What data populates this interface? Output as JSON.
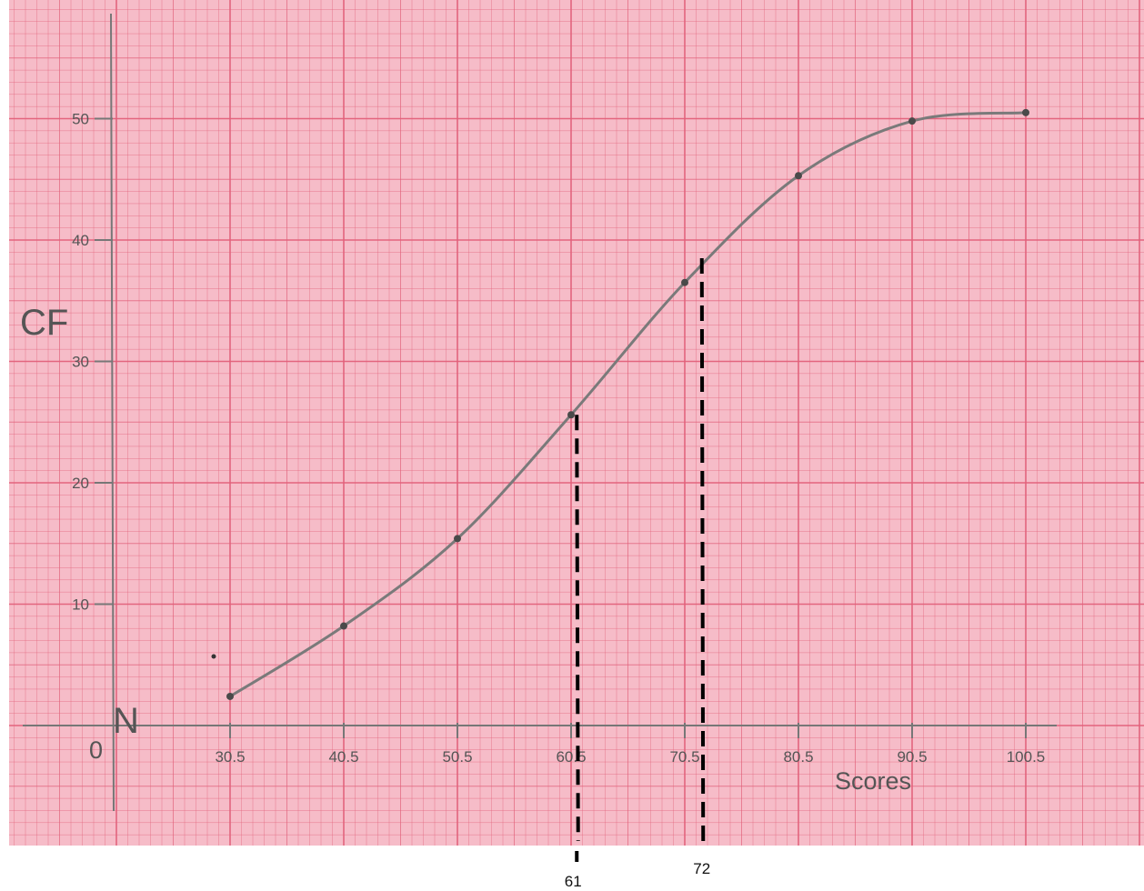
{
  "chart_data": {
    "type": "line",
    "title": "",
    "xlabel": "Scores",
    "ylabel": "CF",
    "origin_label": "0",
    "axis_marker": "N",
    "x_ticks": [
      "30.5",
      "40.5",
      "50.5",
      "60.5",
      "70.5",
      "80.5",
      "90.5",
      "100.5"
    ],
    "y_ticks": [
      "10",
      "20",
      "30",
      "40",
      "50"
    ],
    "xlim": [
      25.5,
      103.5
    ],
    "ylim": [
      -8.5,
      59.5
    ],
    "grid": true,
    "background_color": "#f6bcc8",
    "grid_color": "#e2607a",
    "curve_color": "#7a7a7a",
    "series": [
      {
        "x": [
          30.5,
          40.5,
          50.5,
          60.5,
          70.5,
          80.5,
          90.5,
          100.5
        ],
        "y": [
          2.4,
          8.2,
          15.4,
          25.6,
          36.5,
          45.3,
          49.8,
          50.5
        ]
      }
    ],
    "reference_lines": [
      {
        "x": 61,
        "y": 25.6,
        "label": "61"
      },
      {
        "x": 72,
        "y": 38.5,
        "label": "72"
      }
    ]
  }
}
